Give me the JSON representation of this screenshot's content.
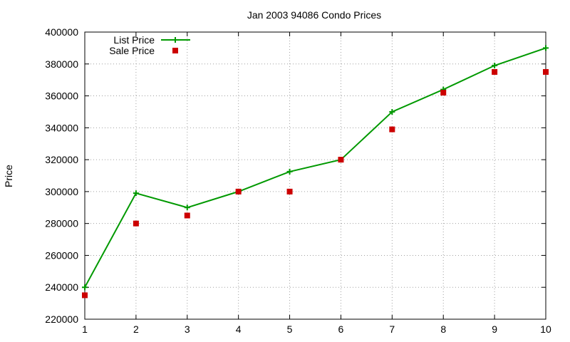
{
  "chart_data": {
    "type": "line",
    "title": "Jan 2003 94086 Condo Prices",
    "xlabel": "",
    "ylabel": "Price",
    "xlim": [
      1,
      10
    ],
    "ylim": [
      220000,
      400000
    ],
    "x_ticks": [
      1,
      2,
      3,
      4,
      5,
      6,
      7,
      8,
      9,
      10
    ],
    "y_ticks": [
      220000,
      240000,
      260000,
      280000,
      300000,
      320000,
      340000,
      360000,
      380000,
      400000
    ],
    "grid": true,
    "legend_position": "top-left",
    "series": [
      {
        "name": "List Price",
        "style": "line with plus markers",
        "color": "#009900",
        "x": [
          1,
          2,
          3,
          4,
          5,
          6,
          7,
          8,
          9,
          10
        ],
        "values": [
          240000,
          299000,
          290000,
          300000,
          312500,
          320000,
          350000,
          364000,
          379000,
          390000
        ]
      },
      {
        "name": "Sale Price",
        "style": "square markers",
        "color": "#cc0000",
        "x": [
          1,
          2,
          3,
          4,
          5,
          6,
          7,
          8,
          9,
          10
        ],
        "values": [
          235000,
          280000,
          285000,
          300000,
          300000,
          320000,
          339000,
          362000,
          375000,
          375000
        ]
      }
    ]
  }
}
